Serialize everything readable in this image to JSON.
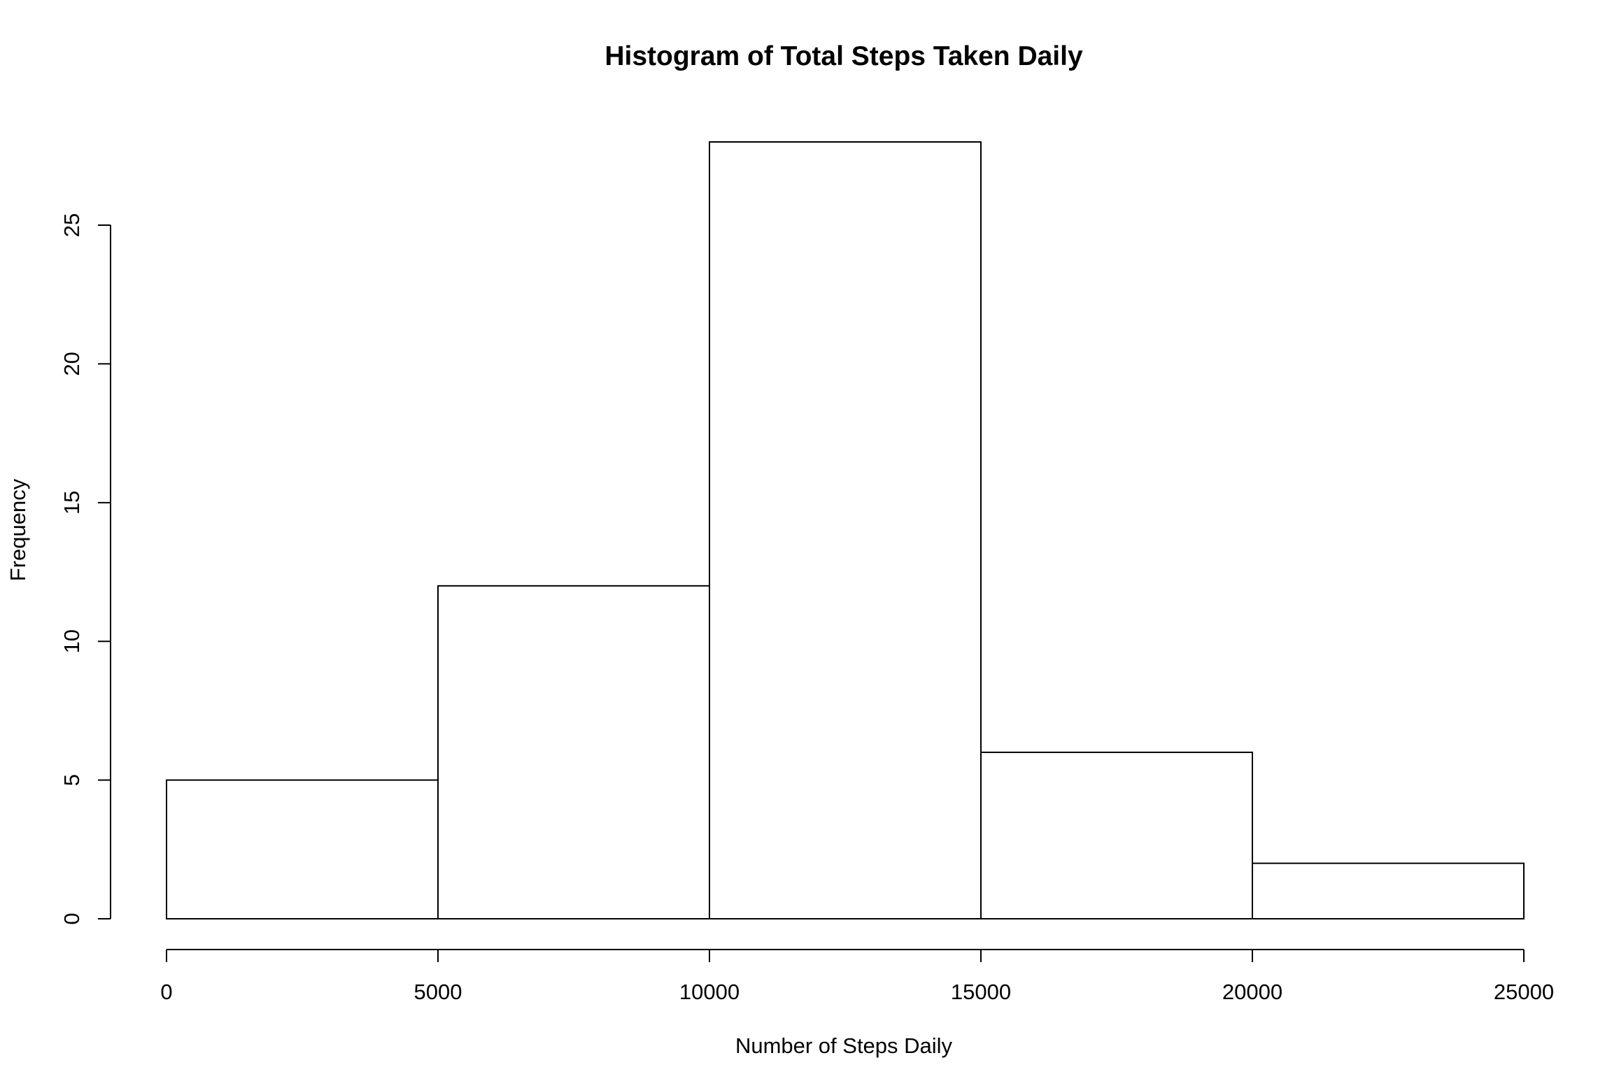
{
  "chart_data": {
    "type": "bar",
    "title": "Histogram of Total Steps Taken Daily",
    "xlabel": "Number of Steps Daily",
    "ylabel": "Frequency",
    "bins": [
      {
        "start": 0,
        "end": 5000,
        "count": 5
      },
      {
        "start": 5000,
        "end": 10000,
        "count": 12
      },
      {
        "start": 10000,
        "end": 15000,
        "count": 28
      },
      {
        "start": 15000,
        "end": 20000,
        "count": 6
      },
      {
        "start": 20000,
        "end": 25000,
        "count": 2
      }
    ],
    "x_ticks": [
      0,
      5000,
      10000,
      15000,
      20000,
      25000
    ],
    "y_ticks": [
      0,
      5,
      10,
      15,
      20,
      25
    ],
    "xlim": [
      0,
      25000
    ],
    "ylim": [
      0,
      28
    ],
    "grid": false,
    "bar_fill": "#ffffff",
    "bar_stroke": "#000000"
  }
}
